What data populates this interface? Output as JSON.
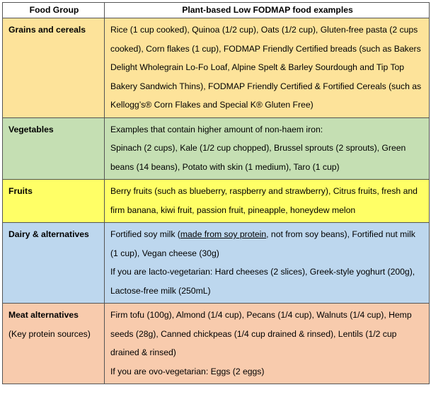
{
  "header": {
    "col1": "Food Group",
    "col2": "Plant-based Low FODMAP food examples"
  },
  "rows": [
    {
      "group": "Grains and cereals",
      "color": "#fde39a",
      "lines": [
        "Rice (1 cup cooked), Quinoa (1/2 cup), Oats (1/2 cup), Gluten-free pasta (2 cups cooked), Corn flakes (1 cup), FODMAP Friendly Certified breads (such as Bakers Delight Wholegrain Lo-Fo Loaf, Alpine Spelt & Barley Sourdough and Tip Top Bakery Sandwich Thins), FODMAP Friendly Certified & Fortified Cereals (such as Kellogg’s® Corn Flakes and Special K® Gluten Free)"
      ]
    },
    {
      "group": "Vegetables",
      "color": "#c5dfb3",
      "lines": [
        "Examples that contain higher amount of non-haem iron:",
        "Spinach (2 cups), Kale (1/2 cup chopped), Brussel sprouts (2 sprouts), Green beans (14 beans), Potato with skin (1 medium), Taro (1 cup)"
      ]
    },
    {
      "group": "Fruits",
      "color": "#ffff66",
      "lines": [
        "Berry fruits (such as blueberry, raspberry and strawberry), Citrus fruits, fresh and firm banana, kiwi fruit, passion fruit, pineapple, honeydew melon"
      ]
    },
    {
      "group": "Dairy & alternatives",
      "color": "#bdd7ee",
      "soy_pre": "Fortified soy milk (",
      "soy_underlined": "made from soy protein",
      "soy_post": ", not from soy beans), Fortified nut milk (1 cup), Vegan cheese (30g)",
      "lacto": "If you are lacto-vegetarian: Hard cheeses (2 slices), Greek-style yoghurt (200g), Lactose-free milk (250mL)"
    },
    {
      "group": "Meat alternatives",
      "group_sub": "(Key protein sources)",
      "color": "#f8cbad",
      "lines": [
        "Firm tofu (100g),  Almond (1/4 cup), Pecans (1/4 cup), Walnuts (1/4 cup), Hemp seeds (28g), Canned chickpeas (1/4 cup drained & rinsed), Lentils (1/2 cup drained & rinsed)",
        "If you are ovo-vegetarian: Eggs (2 eggs)"
      ]
    }
  ]
}
